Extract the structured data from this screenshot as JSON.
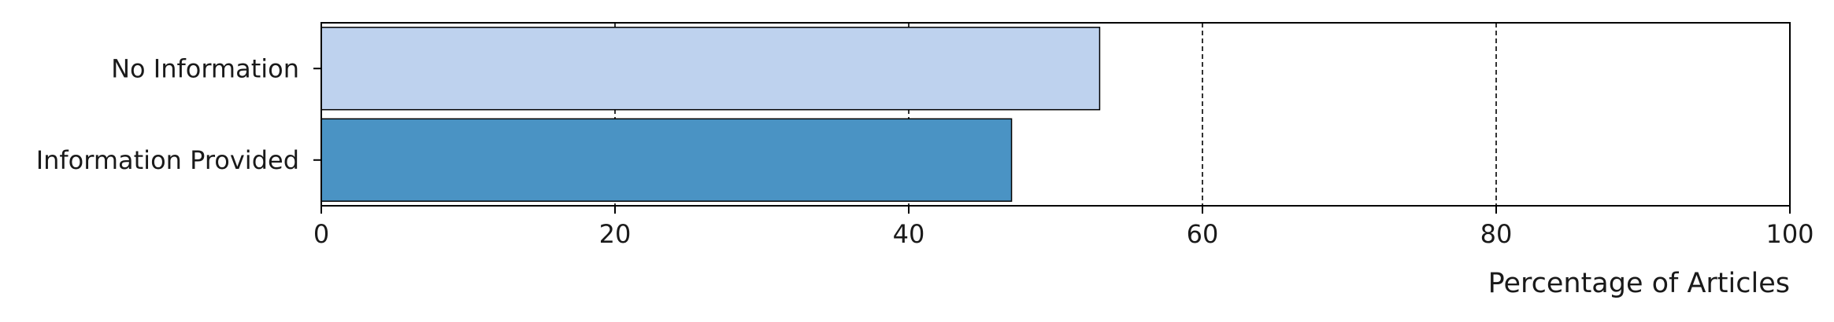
{
  "chart_data": {
    "type": "bar",
    "orientation": "horizontal",
    "categories": [
      "No Information",
      "Information Provided"
    ],
    "values": [
      53,
      47
    ],
    "colors": [
      "#bed2ee",
      "#4a93c4"
    ],
    "xlabel": "Percentage of Articles",
    "ylabel": "",
    "xlim": [
      0,
      100
    ],
    "xticks": [
      "0",
      "20",
      "40",
      "60",
      "80",
      "100"
    ],
    "grid": "x-dashed"
  }
}
